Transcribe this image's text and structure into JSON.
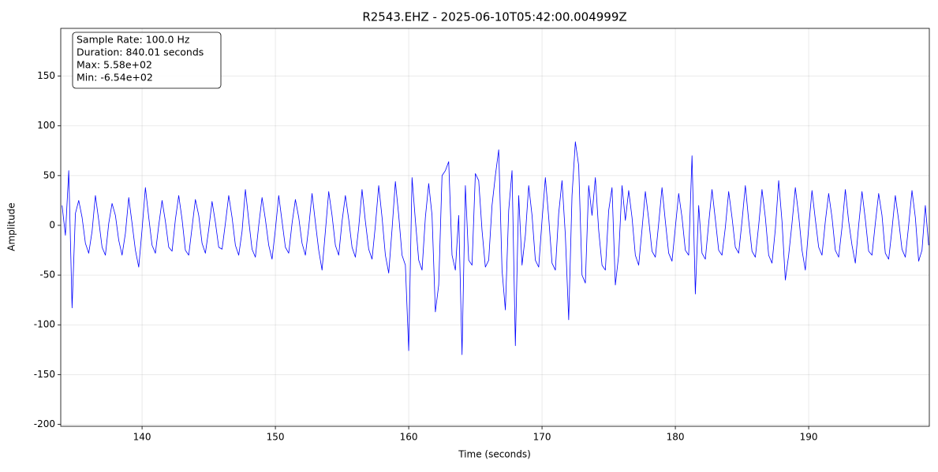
{
  "chart_data": {
    "type": "line",
    "title": "R2543.EHZ - 2025-06-10T05:42:00.004999Z",
    "xlabel": "Time (seconds)",
    "ylabel": "Amplitude",
    "annotations": [
      "Sample Rate: 100.0 Hz",
      "Duration: 840.01 seconds",
      "Max: 5.58e+02",
      "Min: -6.54e+02"
    ],
    "color": "#0000ff",
    "grid": true,
    "xlim": [
      133.9,
      199.05
    ],
    "ylim": [
      -202,
      198
    ],
    "xticks": [
      140,
      150,
      160,
      170,
      180,
      190
    ],
    "yticks": [
      -200,
      -150,
      -100,
      -50,
      0,
      50,
      100,
      150
    ],
    "x": [
      134,
      134.25,
      134.5,
      134.75,
      135,
      135.25,
      135.5,
      135.75,
      136,
      136.25,
      136.5,
      136.75,
      137,
      137.25,
      137.5,
      137.75,
      138,
      138.25,
      138.5,
      138.75,
      139,
      139.25,
      139.5,
      139.75,
      140,
      140.25,
      140.5,
      140.75,
      141,
      141.25,
      141.5,
      141.75,
      142,
      142.25,
      142.5,
      142.75,
      143,
      143.25,
      143.5,
      143.75,
      144,
      144.25,
      144.5,
      144.75,
      145,
      145.25,
      145.5,
      145.75,
      146,
      146.25,
      146.5,
      146.75,
      147,
      147.25,
      147.5,
      147.75,
      148,
      148.25,
      148.5,
      148.75,
      149,
      149.25,
      149.5,
      149.75,
      150,
      150.25,
      150.5,
      150.75,
      151,
      151.25,
      151.5,
      151.75,
      152,
      152.25,
      152.5,
      152.75,
      153,
      153.25,
      153.5,
      153.75,
      154,
      154.25,
      154.5,
      154.75,
      155,
      155.25,
      155.5,
      155.75,
      156,
      156.25,
      156.5,
      156.75,
      157,
      157.25,
      157.5,
      157.75,
      158,
      158.25,
      158.5,
      158.75,
      159,
      159.25,
      159.5,
      159.75,
      160,
      160.25,
      160.5,
      160.75,
      161,
      161.25,
      161.5,
      161.75,
      162,
      162.25,
      162.5,
      162.75,
      163,
      163.25,
      163.5,
      163.75,
      164,
      164.25,
      164.5,
      164.75,
      165,
      165.25,
      165.5,
      165.75,
      166,
      166.25,
      166.5,
      166.75,
      167,
      167.25,
      167.5,
      167.75,
      168,
      168.25,
      168.5,
      168.75,
      169,
      169.25,
      169.5,
      169.75,
      170,
      170.25,
      170.5,
      170.75,
      171,
      171.25,
      171.5,
      171.75,
      172,
      172.25,
      172.5,
      172.75,
      173,
      173.25,
      173.5,
      173.75,
      174,
      174.25,
      174.5,
      174.75,
      175,
      175.25,
      175.5,
      175.75,
      176,
      176.25,
      176.5,
      176.75,
      177,
      177.25,
      177.5,
      177.75,
      178,
      178.25,
      178.5,
      178.75,
      179,
      179.25,
      179.5,
      179.75,
      180,
      180.25,
      180.5,
      180.75,
      181,
      181.25,
      181.5,
      181.75,
      182,
      182.25,
      182.5,
      182.75,
      183,
      183.25,
      183.5,
      183.75,
      184,
      184.25,
      184.5,
      184.75,
      185,
      185.25,
      185.5,
      185.75,
      186,
      186.25,
      186.5,
      186.75,
      187,
      187.25,
      187.5,
      187.75,
      188,
      188.25,
      188.5,
      188.75,
      189,
      189.25,
      189.5,
      189.75,
      190,
      190.25,
      190.5,
      190.75,
      191,
      191.25,
      191.5,
      191.75,
      192,
      192.25,
      192.5,
      192.75,
      193,
      193.25,
      193.5,
      193.75,
      194,
      194.25,
      194.5,
      194.75,
      195,
      195.25,
      195.5,
      195.75,
      196,
      196.25,
      196.5,
      196.75,
      197,
      197.25,
      197.5,
      197.75,
      198,
      198.25,
      198.5,
      198.75,
      199
    ],
    "values": [
      20,
      -10,
      55,
      -83,
      12,
      25,
      8,
      -18,
      -28,
      -6,
      30,
      5,
      -22,
      -30,
      2,
      22,
      10,
      -15,
      -30,
      -8,
      28,
      2,
      -25,
      -42,
      -4,
      38,
      8,
      -20,
      -28,
      0,
      25,
      4,
      -22,
      -26,
      6,
      30,
      6,
      -25,
      -30,
      -2,
      26,
      10,
      -18,
      -28,
      -4,
      24,
      3,
      -22,
      -24,
      2,
      30,
      8,
      -20,
      -30,
      -6,
      36,
      5,
      -24,
      -32,
      0,
      28,
      6,
      -20,
      -34,
      -4,
      30,
      4,
      -22,
      -28,
      2,
      26,
      8,
      -18,
      -30,
      -2,
      32,
      3,
      -25,
      -45,
      -6,
      34,
      10,
      -20,
      -30,
      4,
      30,
      6,
      -22,
      -32,
      -2,
      36,
      4,
      -24,
      -34,
      0,
      40,
      8,
      -30,
      -48,
      -4,
      44,
      10,
      -30,
      -40,
      -126,
      48,
      5,
      -35,
      -45,
      8,
      42,
      10,
      -87,
      -60,
      50,
      55,
      64,
      -30,
      -45,
      10,
      -130,
      40,
      -35,
      -40,
      52,
      45,
      -5,
      -42,
      -35,
      20,
      50,
      76,
      -45,
      -85,
      15,
      55,
      -121,
      30,
      -40,
      -10,
      40,
      10,
      -35,
      -42,
      5,
      48,
      8,
      -38,
      -45,
      12,
      45,
      -10,
      -95,
      30,
      84,
      60,
      -50,
      -58,
      40,
      10,
      48,
      -5,
      -40,
      -45,
      15,
      38,
      -60,
      -30,
      40,
      5,
      35,
      8,
      -30,
      -40,
      -4,
      34,
      6,
      -26,
      -32,
      2,
      38,
      4,
      -28,
      -36,
      -2,
      32,
      8,
      -25,
      -30,
      70,
      -69,
      20,
      -28,
      -34,
      2,
      36,
      6,
      -25,
      -30,
      -2,
      34,
      8,
      -22,
      -28,
      4,
      40,
      5,
      -26,
      -32,
      0,
      36,
      8,
      -30,
      -38,
      -4,
      45,
      4,
      -55,
      -30,
      2,
      38,
      10,
      -25,
      -45,
      -2,
      35,
      6,
      -22,
      -30,
      4,
      32,
      8,
      -25,
      -32,
      -2,
      36,
      4,
      -20,
      -38,
      0,
      34,
      6,
      -26,
      -30,
      2,
      32,
      10,
      -28,
      -34,
      -4,
      30,
      5,
      -24,
      -32,
      0,
      35,
      8,
      -36,
      -25,
      20,
      -20
    ]
  }
}
